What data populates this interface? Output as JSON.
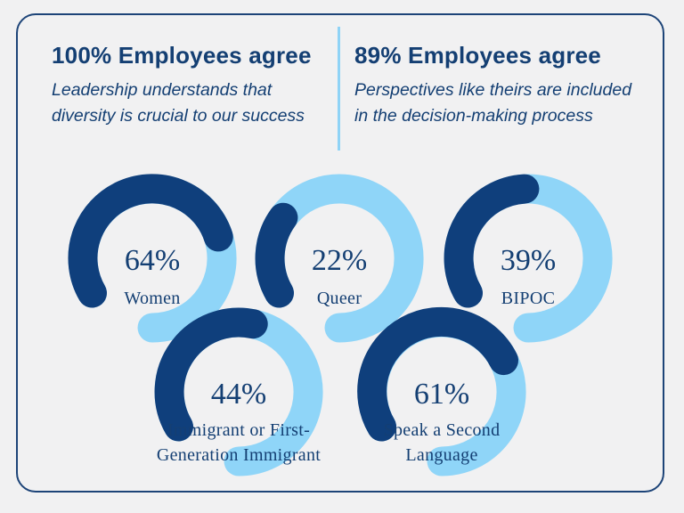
{
  "stats": {
    "left": {
      "title": "100% Employees agree",
      "description_line1": "Leadership understands that",
      "description_line2": "diversity is crucial to our success"
    },
    "right": {
      "title": "89% Employees agree",
      "description_line1": "Perspectives like theirs are included",
      "description_line2": "in the decision-making process"
    }
  },
  "colors": {
    "dark_blue": "#0f3f7c",
    "light_blue": "#8fd5f8",
    "text": "#143f73",
    "background": "#f1f1f2"
  },
  "chart_data": {
    "type": "gauge",
    "unit": "%",
    "max": 100,
    "series": [
      {
        "name": "Women",
        "label_lines": [
          "Women"
        ],
        "value": 64,
        "display": "64%"
      },
      {
        "name": "Queer",
        "label_lines": [
          "Queer"
        ],
        "value": 22,
        "display": "22%"
      },
      {
        "name": "BIPOC",
        "label_lines": [
          "BIPOC"
        ],
        "value": 39,
        "display": "39%"
      },
      {
        "name": "Immigrant or First-Generation Immigrant",
        "label_lines": [
          "Immigrant or First-",
          "Generation Immigrant"
        ],
        "value": 44,
        "display": "44%"
      },
      {
        "name": "Speak a Second Language",
        "label_lines": [
          "Speak a Second",
          "Language"
        ],
        "value": 61,
        "display": "61%"
      }
    ]
  }
}
